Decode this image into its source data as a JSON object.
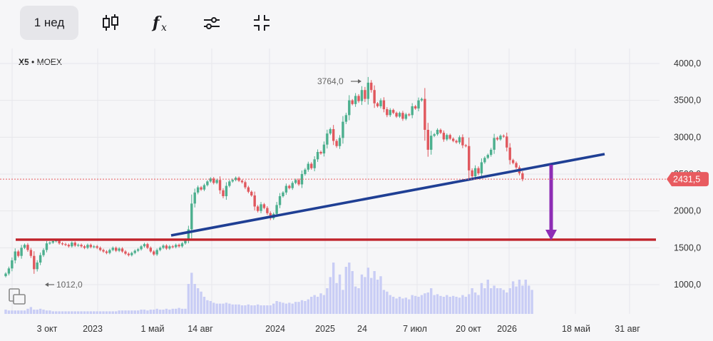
{
  "toolbar": {
    "timeframe_label": "1 нед",
    "icons": [
      "candlestick-icon",
      "function-icon",
      "settings-sliders-icon",
      "collapse-icon"
    ]
  },
  "instrument": {
    "ticker": "X5",
    "exchange": "MOEX"
  },
  "colors": {
    "up": "#4caf8e",
    "down": "#e0575d",
    "volume": "#c9cdf5",
    "trend_blue": "#1f3f94",
    "support_red": "#c0232b",
    "arrow": "#8e2db5",
    "price_tag": "#e85b60"
  },
  "chart_data": {
    "type": "candlestick",
    "ylim": [
      900,
      4150
    ],
    "y_ticks": [
      1000,
      1500,
      2000,
      2500,
      3000,
      3500,
      4000
    ],
    "y_tick_labels": [
      "1000,0",
      "1500,0",
      "2000,0",
      "2500,0",
      "3000,0",
      "3500,0",
      "4000,0"
    ],
    "x_tick_labels": [
      "3 окт",
      "2023",
      "1 май",
      "14 авг",
      "2024",
      "2025",
      "24",
      "7 июл",
      "20 окт",
      "2026",
      "18 май",
      "31 авг"
    ],
    "last_price": 2431.5,
    "last_price_label": "2431,5",
    "max_label": "3764,0",
    "max_value": 3764.0,
    "min_label": "1012,0",
    "min_value": 1012.0,
    "price_path": [
      1150,
      1220,
      1330,
      1450,
      1390,
      1500,
      1540,
      1470,
      1390,
      1210,
      1300,
      1400,
      1470,
      1560,
      1570,
      1590,
      1600,
      1560,
      1550,
      1540,
      1520,
      1570,
      1530,
      1540,
      1520,
      1500,
      1540,
      1510,
      1520,
      1500,
      1470,
      1450,
      1430,
      1470,
      1500,
      1460,
      1490,
      1450,
      1420,
      1400,
      1430,
      1460,
      1480,
      1520,
      1550,
      1500,
      1450,
      1410,
      1470,
      1500,
      1530,
      1490,
      1520,
      1510,
      1540,
      1520,
      1560,
      1610,
      1750,
      2100,
      2250,
      2320,
      2290,
      2350,
      2400,
      2440,
      2380,
      2420,
      2280,
      2200,
      2340,
      2400,
      2420,
      2450,
      2410,
      2390,
      2320,
      2260,
      2210,
      2060,
      2000,
      2090,
      2040,
      1970,
      1900,
      1960,
      2080,
      2200,
      2250,
      2340,
      2310,
      2380,
      2420,
      2360,
      2500,
      2560,
      2640,
      2580,
      2700,
      2800,
      2780,
      2900,
      3050,
      3110,
      2950,
      2880,
      2990,
      3210,
      3300,
      3500,
      3450,
      3560,
      3490,
      3640,
      3520,
      3740,
      3640,
      3460,
      3420,
      3500,
      3380,
      3300,
      3370,
      3330,
      3280,
      3330,
      3250,
      3310,
      3300,
      3420,
      3390,
      3500,
      3520,
      3100,
      2830,
      3020,
      3040,
      3100,
      3060,
      2970,
      3030,
      2980,
      2950,
      2930,
      3000,
      2890,
      2880,
      2550,
      2470,
      2580,
      2510,
      2660,
      2720,
      2760,
      2830,
      2990,
      2970,
      3020,
      3010,
      2860,
      2690,
      2650,
      2590,
      2510,
      2430
    ],
    "volume": [
      0.05,
      0.04,
      0.04,
      0.04,
      0.04,
      0.04,
      0.04,
      0.06,
      0.08,
      0.05,
      0.05,
      0.06,
      0.05,
      0.04,
      0.04,
      0.03,
      0.03,
      0.03,
      0.03,
      0.03,
      0.03,
      0.03,
      0.03,
      0.03,
      0.03,
      0.03,
      0.03,
      0.03,
      0.03,
      0.03,
      0.03,
      0.03,
      0.03,
      0.03,
      0.03,
      0.03,
      0.04,
      0.04,
      0.04,
      0.04,
      0.04,
      0.04,
      0.04,
      0.05,
      0.05,
      0.04,
      0.05,
      0.05,
      0.06,
      0.05,
      0.05,
      0.06,
      0.05,
      0.06,
      0.06,
      0.07,
      0.06,
      0.06,
      0.35,
      0.48,
      0.35,
      0.3,
      0.26,
      0.2,
      0.16,
      0.15,
      0.13,
      0.12,
      0.12,
      0.12,
      0.13,
      0.12,
      0.11,
      0.11,
      0.11,
      0.1,
      0.1,
      0.11,
      0.1,
      0.1,
      0.11,
      0.1,
      0.1,
      0.1,
      0.1,
      0.12,
      0.15,
      0.14,
      0.13,
      0.12,
      0.13,
      0.12,
      0.14,
      0.14,
      0.16,
      0.15,
      0.17,
      0.2,
      0.22,
      0.2,
      0.24,
      0.22,
      0.3,
      0.43,
      0.6,
      0.36,
      0.46,
      0.28,
      0.55,
      0.6,
      0.5,
      0.32,
      0.3,
      0.46,
      0.43,
      0.54,
      0.42,
      0.5,
      0.4,
      0.44,
      0.28,
      0.26,
      0.22,
      0.2,
      0.18,
      0.2,
      0.18,
      0.19,
      0.17,
      0.22,
      0.21,
      0.2,
      0.22,
      0.24,
      0.25,
      0.3,
      0.22,
      0.23,
      0.21,
      0.2,
      0.22,
      0.2,
      0.21,
      0.2,
      0.19,
      0.22,
      0.2,
      0.23,
      0.3,
      0.25,
      0.22,
      0.36,
      0.3,
      0.4,
      0.3,
      0.33,
      0.3,
      0.3,
      0.28,
      0.25,
      0.3,
      0.38,
      0.32,
      0.4,
      0.33,
      0.4,
      0.33,
      0.28
    ]
  }
}
